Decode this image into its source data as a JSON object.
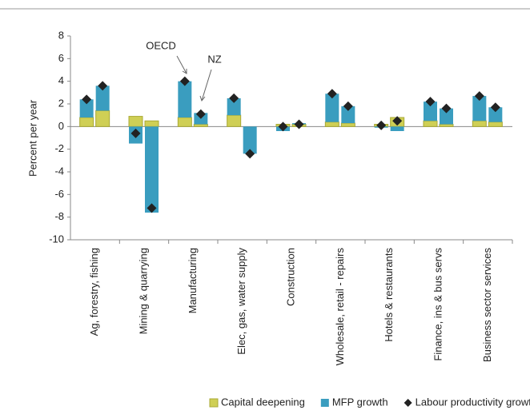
{
  "chart_data": {
    "type": "stacked-bar-grouped",
    "y_label": "Percent per year",
    "groups": [
      "OECD",
      "NZ"
    ],
    "categories": [
      "Ag, forestry, fishing",
      "Mining & quarrying",
      "Manufacturing",
      "Elec, gas, water supply",
      "Construction",
      "Wholesale, retail - repairs",
      "Hotels & restaurants",
      "Finance, ins & bus servs",
      "Business sector services"
    ],
    "series": [
      {
        "name": "Capital deepening",
        "color": "#cfcf55",
        "values": [
          [
            0.8,
            1.4
          ],
          [
            0.9,
            0.5
          ],
          [
            0.8,
            0.2
          ],
          [
            1.0,
            0
          ],
          [
            0.2,
            0.2
          ],
          [
            0.4,
            0.3
          ],
          [
            0.2,
            0.8
          ],
          [
            0.5,
            0.2
          ],
          [
            0.5,
            0.4
          ]
        ]
      },
      {
        "name": "MFP growth",
        "color": "#3a9dbf",
        "values": [
          [
            1.6,
            2.2
          ],
          [
            -1.5,
            -7.6
          ],
          [
            3.2,
            1.0
          ],
          [
            1.5,
            -2.4
          ],
          [
            -0.4,
            0.1
          ],
          [
            2.5,
            1.5
          ],
          [
            -0.1,
            -0.4
          ],
          [
            1.7,
            1.4
          ],
          [
            2.2,
            1.3
          ]
        ]
      },
      {
        "name": "Labour productivity growth",
        "color": "#222222",
        "marker": "diamond",
        "values": [
          [
            2.4,
            3.6
          ],
          [
            -0.6,
            -7.2
          ],
          [
            4.0,
            1.1
          ],
          [
            2.5,
            -2.4
          ],
          [
            0.0,
            0.2
          ],
          [
            2.9,
            1.8
          ],
          [
            0.1,
            0.5
          ],
          [
            2.2,
            1.6
          ],
          [
            2.7,
            1.7
          ]
        ]
      }
    ],
    "ylim": [
      -10,
      8
    ],
    "yticks": [
      8,
      6,
      4,
      2,
      0,
      -2,
      -4,
      -6,
      -8,
      -10
    ],
    "grid": false,
    "legend": "bottom"
  }
}
